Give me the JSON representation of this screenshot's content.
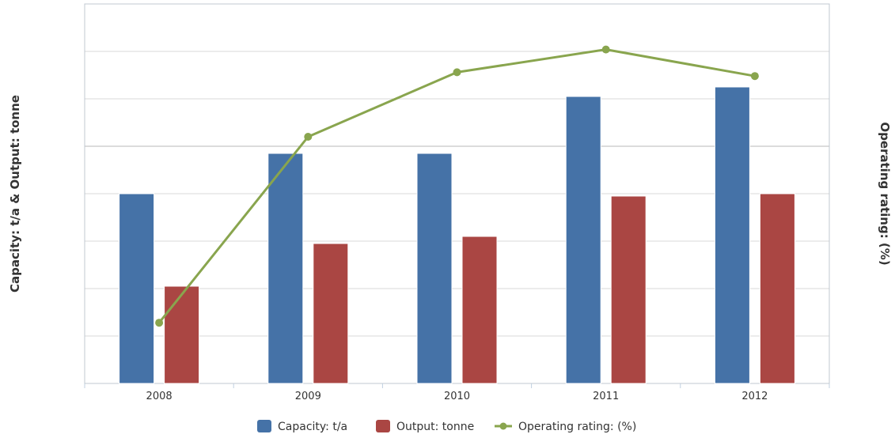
{
  "chart_data": {
    "type": "bar",
    "categories": [
      "2008",
      "2009",
      "2010",
      "2011",
      "2012"
    ],
    "ylabel_left": "Capacity: t/a & Output: tonne",
    "ylabel_right": "Operating rating: (%)",
    "ylim_left": [
      0,
      8
    ],
    "ylim_right": [
      0,
      100
    ],
    "grid": true,
    "legend_position": "bottom-center",
    "series": [
      {
        "name": "Capacity: t/a",
        "kind": "bar",
        "axis": "left",
        "color": "#4572A7",
        "values": [
          4.0,
          4.85,
          4.85,
          6.05,
          6.25
        ]
      },
      {
        "name": "Output: tonne",
        "kind": "bar",
        "axis": "left",
        "color": "#AA4643",
        "values": [
          2.05,
          2.95,
          3.1,
          3.95,
          4.0
        ]
      },
      {
        "name": "Operating rating: (%)",
        "kind": "line",
        "axis": "right",
        "color": "#89A54E",
        "values": [
          16,
          65,
          82,
          88,
          81
        ]
      }
    ]
  }
}
